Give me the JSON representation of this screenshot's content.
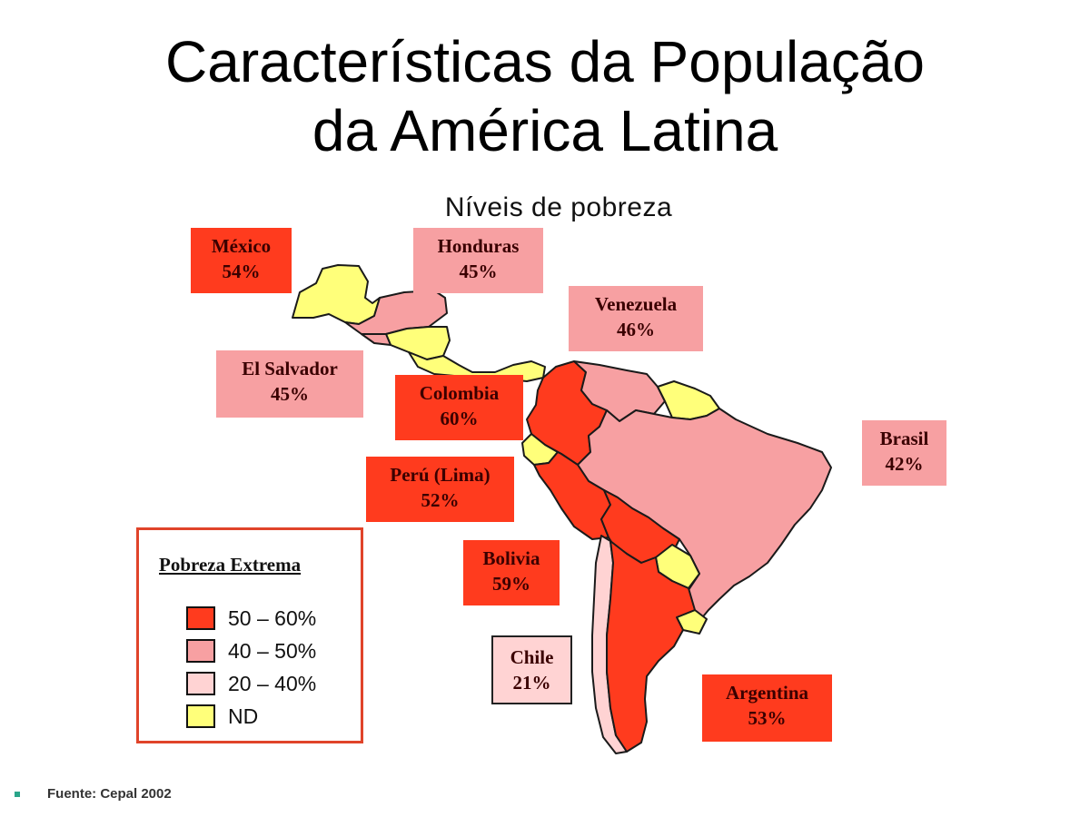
{
  "title": {
    "line1": "Características da População",
    "line2": "da América Latina"
  },
  "subtitle": "Níveis de pobreza",
  "colors": {
    "range_50_60": "#ff3b1e",
    "range_40_50": "#f7a0a2",
    "range_20_40": "#ffd3d3",
    "nd": "#ffff7a",
    "legend_border": "#e0442a"
  },
  "countries": [
    {
      "name": "México",
      "value": "54%",
      "category": "range_50_60"
    },
    {
      "name": "Honduras",
      "value": "45%",
      "category": "range_40_50"
    },
    {
      "name": "Venezuela",
      "value": "46%",
      "category": "range_40_50"
    },
    {
      "name": "El Salvador",
      "value": "45%",
      "category": "range_40_50"
    },
    {
      "name": "Colombia",
      "value": "60%",
      "category": "range_50_60"
    },
    {
      "name": "Brasil",
      "value": "42%",
      "category": "range_40_50"
    },
    {
      "name": "Perú (Lima)",
      "value": "52%",
      "category": "range_50_60"
    },
    {
      "name": "Bolivia",
      "value": "59%",
      "category": "range_50_60"
    },
    {
      "name": "Chile",
      "value": "21%",
      "category": "range_20_40"
    },
    {
      "name": "Argentina",
      "value": "53%",
      "category": "range_50_60"
    }
  ],
  "legend": {
    "title": "Pobreza Extrema",
    "items": [
      {
        "label": "50 – 60%",
        "category": "range_50_60"
      },
      {
        "label": "40 – 50%",
        "category": "range_40_50"
      },
      {
        "label": "20 – 40%",
        "category": "range_20_40"
      },
      {
        "label": "ND",
        "category": "nd"
      }
    ]
  },
  "source": "Fuente: Cepal 2002"
}
